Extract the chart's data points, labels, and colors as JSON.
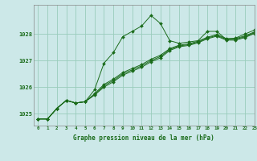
{
  "title": "Graphe pression niveau de la mer (hPa)",
  "background_color": "#cce8e8",
  "grid_color": "#99ccbb",
  "line_color": "#1a6b1a",
  "xlim": [
    -0.5,
    23
  ],
  "ylim": [
    1024.55,
    1029.1
  ],
  "yticks": [
    1025,
    1026,
    1027,
    1028
  ],
  "xticks": [
    0,
    1,
    2,
    3,
    4,
    5,
    6,
    7,
    8,
    9,
    10,
    11,
    12,
    13,
    14,
    15,
    16,
    17,
    18,
    19,
    20,
    21,
    22,
    23
  ],
  "series": [
    [
      1024.8,
      1024.8,
      1025.2,
      1025.5,
      1025.4,
      1025.45,
      1025.9,
      1026.9,
      1027.3,
      1027.9,
      1028.1,
      1028.3,
      1028.7,
      1028.4,
      1027.75,
      1027.65,
      1027.7,
      1027.75,
      1028.1,
      1028.1,
      1027.8,
      1027.85,
      1028.0,
      1028.15
    ],
    [
      1024.8,
      1024.8,
      1025.2,
      1025.5,
      1025.4,
      1025.45,
      1025.75,
      1026.1,
      1026.3,
      1026.55,
      1026.7,
      1026.85,
      1027.05,
      1027.2,
      1027.45,
      1027.58,
      1027.63,
      1027.73,
      1027.88,
      1027.98,
      1027.83,
      1027.83,
      1027.93,
      1028.08
    ],
    [
      1024.8,
      1024.8,
      1025.2,
      1025.5,
      1025.4,
      1025.45,
      1025.72,
      1026.05,
      1026.25,
      1026.5,
      1026.65,
      1026.8,
      1027.0,
      1027.15,
      1027.42,
      1027.55,
      1027.6,
      1027.7,
      1027.85,
      1027.95,
      1027.8,
      1027.8,
      1027.9,
      1028.05
    ],
    [
      1024.8,
      1024.8,
      1025.2,
      1025.5,
      1025.4,
      1025.45,
      1025.7,
      1026.0,
      1026.2,
      1026.45,
      1026.6,
      1026.75,
      1026.95,
      1027.1,
      1027.38,
      1027.52,
      1027.57,
      1027.67,
      1027.82,
      1027.92,
      1027.77,
      1027.77,
      1027.87,
      1028.02
    ]
  ]
}
